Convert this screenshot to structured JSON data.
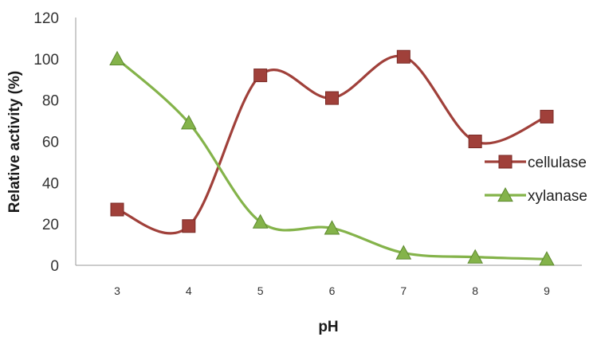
{
  "chart_data": {
    "type": "line",
    "x": [
      3,
      4,
      5,
      6,
      7,
      8,
      9
    ],
    "xlabel": "pH",
    "ylabel": "Relative activity (%)",
    "ylim": [
      0,
      120
    ],
    "yticks": [
      0,
      20,
      40,
      60,
      80,
      100,
      120
    ],
    "grid": false,
    "legend_position": "right",
    "smooth": true,
    "series": [
      {
        "name": "cellulase",
        "marker": "square",
        "color": "#a0403a",
        "values": [
          27,
          19,
          92,
          81,
          101,
          60,
          72
        ]
      },
      {
        "name": "xylanase",
        "marker": "triangle",
        "color": "#84b34a",
        "values": [
          100,
          69,
          21,
          18,
          6,
          4,
          3
        ]
      }
    ]
  }
}
